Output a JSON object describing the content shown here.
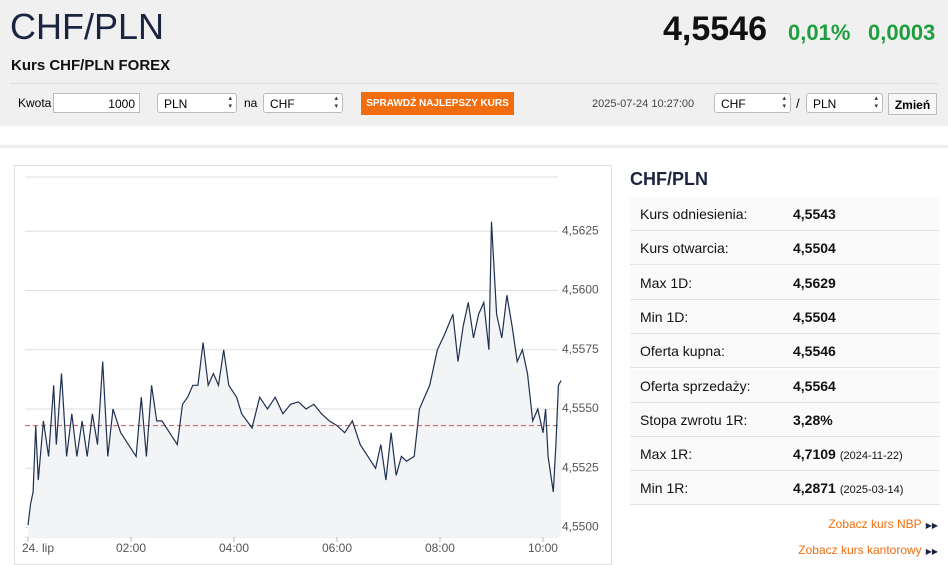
{
  "header": {
    "title": "CHF/PLN",
    "subtitle": "Kurs CHF/PLN FOREX",
    "rate": "4,5546",
    "change_pct": "0,01%",
    "change_abs": "0,0003"
  },
  "converter": {
    "amount_label": "Kwota",
    "amount": "1000",
    "from": "PLN",
    "to_label": "na",
    "to": "CHF",
    "button": "SPRAWDŹ NAJLEPSZY KURS",
    "timestamp": "2025-07-24 10:27:00",
    "pair_from": "CHF",
    "separator": "/",
    "pair_to": "PLN",
    "swap_button": "Zmień"
  },
  "chart_data": {
    "type": "line",
    "color": "#1f3050",
    "reference": 4.5543,
    "reference_color": "#d9534f",
    "x": [
      0,
      0.05,
      0.1,
      0.15,
      0.2,
      0.3,
      0.4,
      0.5,
      0.55,
      0.65,
      0.75,
      0.85,
      0.95,
      1.05,
      1.15,
      1.25,
      1.35,
      1.45,
      1.55,
      1.65,
      1.8,
      1.95,
      2.1,
      2.2,
      2.3,
      2.4,
      2.5,
      2.6,
      2.75,
      2.9,
      3.0,
      3.1,
      3.2,
      3.3,
      3.4,
      3.5,
      3.6,
      3.7,
      3.8,
      3.9,
      4.05,
      4.15,
      4.25,
      4.35,
      4.5,
      4.65,
      4.8,
      4.95,
      5.1,
      5.25,
      5.4,
      5.55,
      5.7,
      5.85,
      6.0,
      6.15,
      6.3,
      6.45,
      6.6,
      6.75,
      6.85,
      6.95,
      7.05,
      7.15,
      7.25,
      7.35,
      7.5,
      7.6,
      7.7,
      7.8,
      7.95,
      8.1,
      8.25,
      8.35,
      8.45,
      8.55,
      8.65,
      8.75,
      8.85,
      8.95,
      9.0,
      9.1,
      9.2,
      9.3,
      9.4,
      9.5,
      9.6,
      9.7,
      9.8,
      9.9,
      10.0,
      10.05,
      10.1,
      10.2,
      10.25,
      10.3,
      10.35
    ],
    "values": [
      4.5501,
      4.551,
      4.5515,
      4.5543,
      4.552,
      4.5545,
      4.553,
      4.556,
      4.5535,
      4.5565,
      4.553,
      4.5548,
      4.553,
      4.5545,
      4.553,
      4.5548,
      4.5535,
      4.557,
      4.553,
      4.555,
      4.554,
      4.5535,
      4.553,
      4.5555,
      4.553,
      4.556,
      4.5545,
      4.5545,
      4.554,
      4.5535,
      4.5552,
      4.5555,
      4.556,
      4.556,
      4.5578,
      4.556,
      4.5565,
      4.556,
      4.5575,
      4.556,
      4.5555,
      4.5548,
      4.5545,
      4.5542,
      4.5555,
      4.555,
      4.5555,
      4.5548,
      4.5552,
      4.5553,
      4.555,
      4.5552,
      4.5548,
      4.5545,
      4.5543,
      4.554,
      4.5545,
      4.5535,
      4.553,
      4.5525,
      4.5535,
      4.552,
      4.554,
      4.5522,
      4.553,
      4.5528,
      4.553,
      4.555,
      4.5555,
      4.556,
      4.5575,
      4.5582,
      4.559,
      4.557,
      4.5585,
      4.5595,
      4.558,
      4.559,
      4.5595,
      4.5575,
      4.5629,
      4.559,
      4.558,
      4.5598,
      4.5585,
      4.557,
      4.5575,
      4.5565,
      4.5545,
      4.555,
      4.554,
      4.555,
      4.553,
      4.5515,
      4.5535,
      4.556,
      4.5562
    ],
    "xlim": [
      0,
      10.35
    ],
    "xticks": [
      {
        "value": 0,
        "label": "24. lip"
      },
      {
        "value": 2,
        "label": "02:00"
      },
      {
        "value": 4,
        "label": "04:00"
      },
      {
        "value": 6,
        "label": "06:00"
      },
      {
        "value": 8,
        "label": "08:00"
      },
      {
        "value": 10,
        "label": "10:00"
      }
    ],
    "ylim": [
      4.5496,
      4.565
    ],
    "yticks": [
      {
        "value": 4.55,
        "label": "4,5500"
      },
      {
        "value": 4.5525,
        "label": "4,5525"
      },
      {
        "value": 4.555,
        "label": "4,5550"
      },
      {
        "value": 4.5575,
        "label": "4,5575"
      },
      {
        "value": 4.56,
        "label": "4,5600"
      },
      {
        "value": 4.5625,
        "label": "4,5625"
      }
    ],
    "grid": true
  },
  "stats": {
    "title": "CHF/PLN",
    "rows": [
      {
        "label": "Kurs odniesienia:",
        "value": "4,5543"
      },
      {
        "label": "Kurs otwarcia:",
        "value": "4,5504"
      },
      {
        "label": "Max 1D:",
        "value": "4,5629"
      },
      {
        "label": "Min 1D:",
        "value": "4,5504"
      },
      {
        "label": "Oferta kupna:",
        "value": "4,5546"
      },
      {
        "label": "Oferta sprzedaży:",
        "value": "4,5564"
      },
      {
        "label": "Stopa zwrotu 1R:",
        "value": "3,28%"
      },
      {
        "label": "Max 1R:",
        "value": "4,7109",
        "date": "(2024-11-22)"
      },
      {
        "label": "Min 1R:",
        "value": "4,2871",
        "date": "(2025-03-14)"
      }
    ]
  },
  "links": [
    "Zobacz kurs NBP",
    "Zobacz kurs kantorowy"
  ]
}
